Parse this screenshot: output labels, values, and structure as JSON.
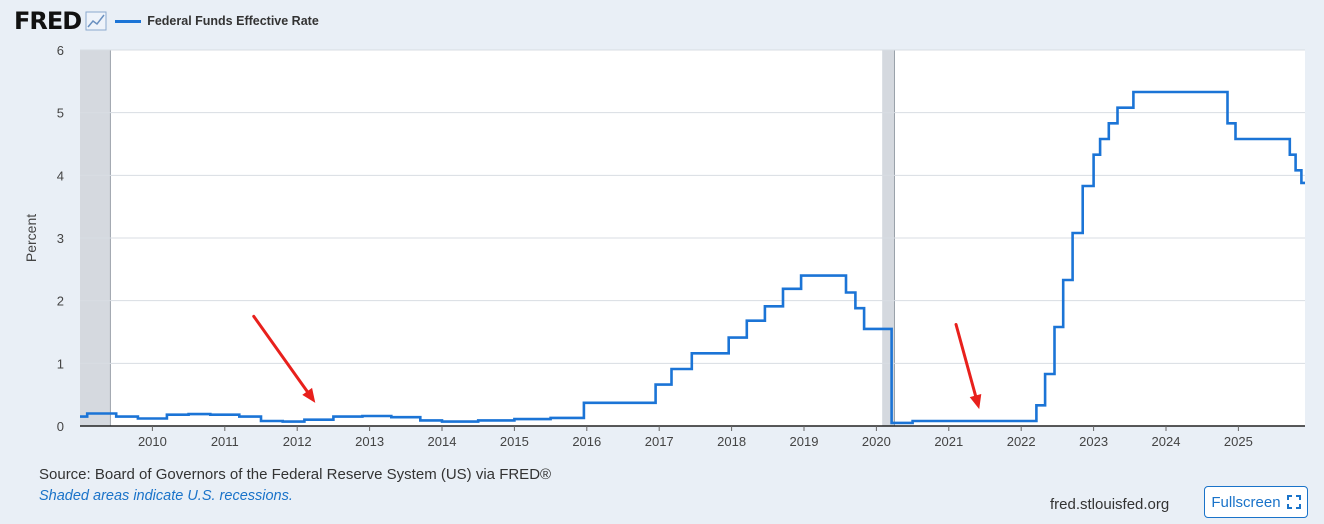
{
  "header": {
    "logo": "FRED",
    "legend_label": "Federal Funds Effective Rate"
  },
  "footer": {
    "source": "Source: Board of Governors of the Federal Reserve System (US) via FRED®",
    "note": "Shaded areas indicate U.S. recessions.",
    "site": "fred.stlouisfed.org",
    "fullscreen_label": "Fullscreen"
  },
  "colors": {
    "line": "#1b74d6",
    "recession": "#d5d9df",
    "annotation_arrow": "#e8201c"
  },
  "icons": [
    "fred-graph-icon",
    "fullscreen-icon"
  ],
  "chart_data": {
    "type": "line",
    "ylabel": "Percent",
    "xlabel": "",
    "xlim": [
      2009.0,
      2025.92
    ],
    "ylim": [
      0,
      6
    ],
    "yticks": [
      0,
      1,
      2,
      3,
      4,
      5,
      6
    ],
    "xticks": [
      2010,
      2011,
      2012,
      2013,
      2014,
      2015,
      2016,
      2017,
      2018,
      2019,
      2020,
      2021,
      2022,
      2023,
      2024,
      2025
    ],
    "grid": "horizontal",
    "recessions": [
      [
        2009.0,
        2009.42
      ],
      [
        2020.08,
        2020.25
      ]
    ],
    "annotations": [
      {
        "type": "arrow",
        "from": [
          2011.4,
          1.75
        ],
        "to": [
          2012.25,
          0.37
        ]
      },
      {
        "type": "arrow",
        "from": [
          2021.1,
          1.62
        ],
        "to": [
          2021.42,
          0.27
        ]
      }
    ],
    "series": [
      {
        "name": "Federal Funds Effective Rate",
        "step": true,
        "x": [
          2009.0,
          2009.1,
          2009.3,
          2009.5,
          2009.8,
          2010.2,
          2010.5,
          2010.8,
          2011.2,
          2011.5,
          2011.8,
          2012.1,
          2012.5,
          2012.9,
          2013.3,
          2013.7,
          2014.0,
          2014.5,
          2015.0,
          2015.5,
          2015.95,
          2015.96,
          2016.95,
          2017.17,
          2017.45,
          2017.96,
          2018.21,
          2018.46,
          2018.71,
          2018.96,
          2019.58,
          2019.71,
          2019.83,
          2020.17,
          2020.21,
          2020.5,
          2021.0,
          2021.5,
          2022.0,
          2022.21,
          2022.33,
          2022.46,
          2022.58,
          2022.71,
          2022.85,
          2023.0,
          2023.09,
          2023.21,
          2023.33,
          2023.55,
          2024.71,
          2024.85,
          2024.96,
          2025.71,
          2025.79,
          2025.87,
          2025.92
        ],
        "y": [
          0.15,
          0.2,
          0.2,
          0.15,
          0.12,
          0.18,
          0.19,
          0.18,
          0.15,
          0.08,
          0.07,
          0.1,
          0.15,
          0.16,
          0.14,
          0.09,
          0.07,
          0.09,
          0.11,
          0.13,
          0.13,
          0.37,
          0.66,
          0.91,
          1.16,
          1.41,
          1.68,
          1.91,
          2.19,
          2.4,
          2.13,
          1.88,
          1.55,
          1.55,
          0.05,
          0.08,
          0.08,
          0.08,
          0.08,
          0.33,
          0.83,
          1.58,
          2.33,
          3.08,
          3.83,
          4.33,
          4.58,
          4.83,
          5.08,
          5.33,
          5.33,
          4.83,
          4.58,
          4.33,
          4.08,
          3.88,
          3.88
        ]
      }
    ]
  }
}
